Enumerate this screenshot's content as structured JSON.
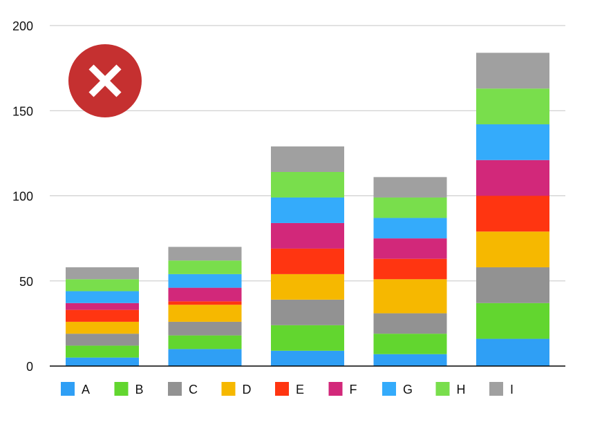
{
  "chart_data": {
    "type": "bar",
    "stacked": true,
    "title": "",
    "xlabel": "",
    "ylabel": "",
    "ylim": [
      0,
      200
    ],
    "y_ticks": [
      "0",
      "50",
      "100",
      "150",
      "200"
    ],
    "grid": true,
    "legend_position": "bottom",
    "categories": [
      "",
      "",
      "",
      "",
      ""
    ],
    "series": [
      {
        "name": "A",
        "color": "#2f9ff5",
        "values": [
          5,
          10,
          9,
          7,
          16
        ]
      },
      {
        "name": "B",
        "color": "#62d62f",
        "values": [
          7,
          8,
          15,
          12,
          21
        ]
      },
      {
        "name": "C",
        "color": "#929292",
        "values": [
          7,
          8,
          15,
          12,
          21
        ]
      },
      {
        "name": "D",
        "color": "#f6b800",
        "values": [
          7,
          10,
          15,
          20,
          21
        ]
      },
      {
        "name": "E",
        "color": "#ff3511",
        "values": [
          7,
          2,
          15,
          12,
          21
        ]
      },
      {
        "name": "F",
        "color": "#d2287a",
        "values": [
          4,
          8,
          15,
          12,
          21
        ]
      },
      {
        "name": "G",
        "color": "#34abfb",
        "values": [
          7,
          8,
          15,
          12,
          21
        ]
      },
      {
        "name": "H",
        "color": "#79de4c",
        "values": [
          7,
          8,
          15,
          12,
          21
        ]
      },
      {
        "name": "I",
        "color": "#a0a0a0",
        "values": [
          7,
          8,
          15,
          12,
          21
        ]
      }
    ]
  },
  "overlay": {
    "icon": "close-icon",
    "color": "#c53030"
  }
}
